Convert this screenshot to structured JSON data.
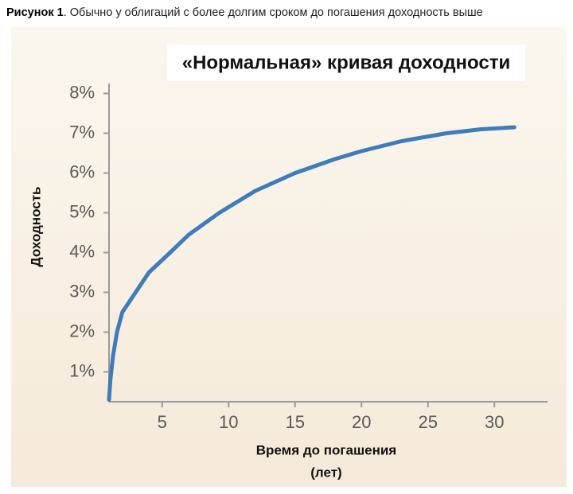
{
  "chart_data": {
    "type": "line",
    "figure_label": "Рисунок 1",
    "caption": ". Обычно у облигаций с более долгим сроком до погашения доходность выше",
    "title": "«Нормальная» кривая доходности",
    "y_label": "Доходность",
    "x_label": [
      "Время до погашения",
      "(лет)"
    ],
    "x": [
      1,
      1.1,
      1.3,
      1.6,
      2,
      3,
      4,
      5.6,
      7,
      9.3,
      12,
      15,
      18,
      20,
      23,
      26.4,
      29,
      31.5
    ],
    "series": [
      {
        "color": "#3f7cba",
        "values": [
          0.3,
          0.8,
          1.4,
          2,
          2.5,
          3,
          3.5,
          4,
          4.45,
          5,
          5.55,
          6,
          6.35,
          6.55,
          6.8,
          7,
          7.1,
          7.15
        ]
      }
    ],
    "xlim": [
      1,
      34
    ],
    "ylim": [
      0.25,
      8.25
    ],
    "xticks": [
      5,
      10,
      15,
      20,
      25,
      30
    ],
    "yticks": [
      {
        "value": 1,
        "label": "1%"
      },
      {
        "value": 2,
        "label": "2%"
      },
      {
        "value": 3,
        "label": "3%"
      },
      {
        "value": 4,
        "label": "4%"
      },
      {
        "value": 5,
        "label": "5%"
      },
      {
        "value": 6,
        "label": "6%"
      },
      {
        "value": 7,
        "label": "7%"
      },
      {
        "value": 8,
        "label": "8%"
      }
    ]
  }
}
